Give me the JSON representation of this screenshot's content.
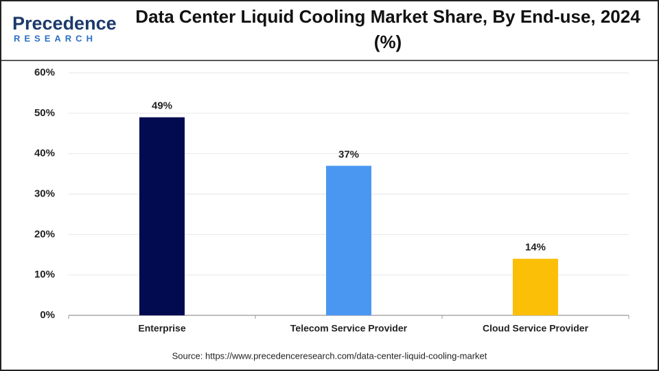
{
  "logo": {
    "name": "Precedence",
    "tagline": "RESEARCH"
  },
  "chart_data": {
    "type": "bar",
    "title": "Data Center Liquid Cooling Market Share, By End-use, 2024 (%)",
    "categories": [
      "Enterprise",
      "Telecom Service Provider",
      "Cloud Service Provider"
    ],
    "values": [
      49,
      37,
      14
    ],
    "value_labels": [
      "49%",
      "37%",
      "14%"
    ],
    "colors": [
      "#020b50",
      "#4a97f2",
      "#fcbf08"
    ],
    "ylim": [
      0,
      60
    ],
    "yticks": [
      {
        "value": 0,
        "label": "0%"
      },
      {
        "value": 10,
        "label": "10%"
      },
      {
        "value": 20,
        "label": "20%"
      },
      {
        "value": 30,
        "label": "30%"
      },
      {
        "value": 40,
        "label": "40%"
      },
      {
        "value": 50,
        "label": "50%"
      },
      {
        "value": 60,
        "label": "60%"
      }
    ],
    "grid": true,
    "source": "Source: https://www.precedenceresearch.com/data-center-liquid-cooling-market"
  }
}
